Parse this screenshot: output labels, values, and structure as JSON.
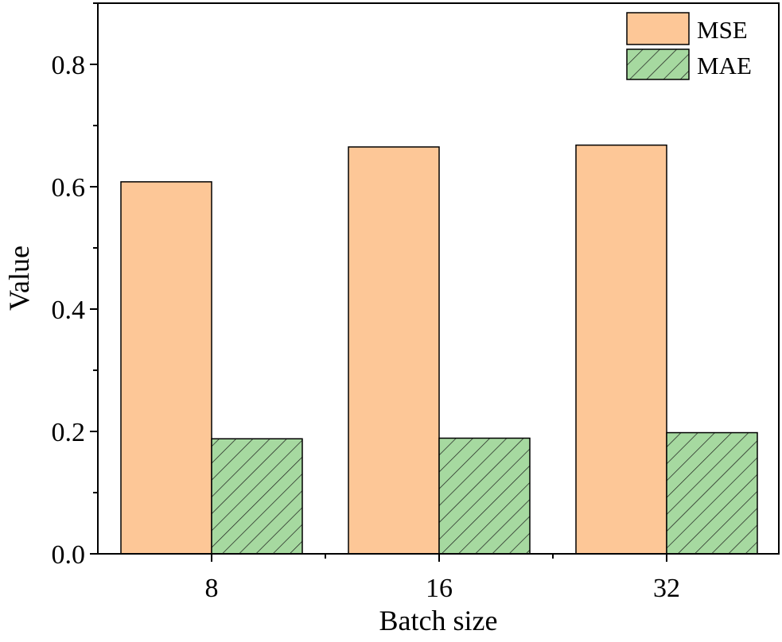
{
  "chart_data": {
    "type": "bar",
    "categories": [
      "8",
      "16",
      "32"
    ],
    "series": [
      {
        "name": "MSE",
        "values": [
          0.608,
          0.665,
          0.668
        ],
        "color": "#FDC797",
        "pattern": "solid"
      },
      {
        "name": "MAE",
        "values": [
          0.188,
          0.189,
          0.198
        ],
        "color": "#A6D9A0",
        "pattern": "diagonal-hatch"
      }
    ],
    "xlabel": "Batch size",
    "ylabel": "Value",
    "ylim": [
      0,
      0.9
    ],
    "yticks": [
      "0.0",
      "0.2",
      "0.4",
      "0.6",
      "0.8"
    ],
    "legend": "top-right",
    "grid": false
  }
}
